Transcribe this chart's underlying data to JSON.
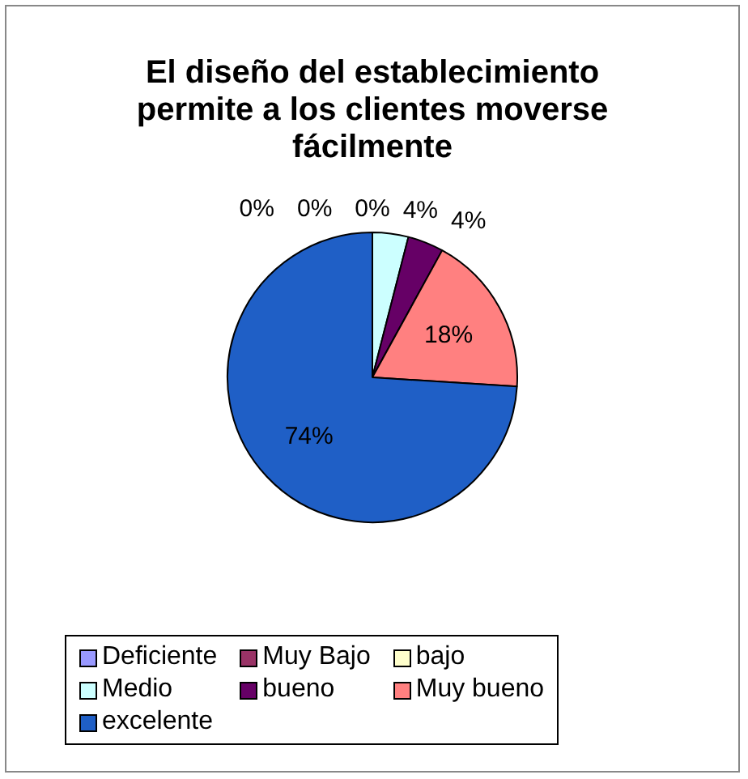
{
  "chart_data": {
    "type": "pie",
    "title": "El diseño del establecimiento permite a los clientes moverse fácilmente",
    "categories": [
      "Deficiente",
      "Muy Bajo",
      "bajo",
      "Medio",
      "bueno",
      "Muy bueno",
      "excelente"
    ],
    "values": [
      0,
      0,
      0,
      4,
      4,
      18,
      74
    ],
    "value_labels": [
      "0%",
      "0%",
      "0%",
      "4%",
      "4%",
      "18%",
      "74%"
    ],
    "colors": [
      "#9999ff",
      "#993366",
      "#ffffcc",
      "#ccffff",
      "#660066",
      "#ff8080",
      "#1f5fc6"
    ],
    "legend": "bottom"
  }
}
